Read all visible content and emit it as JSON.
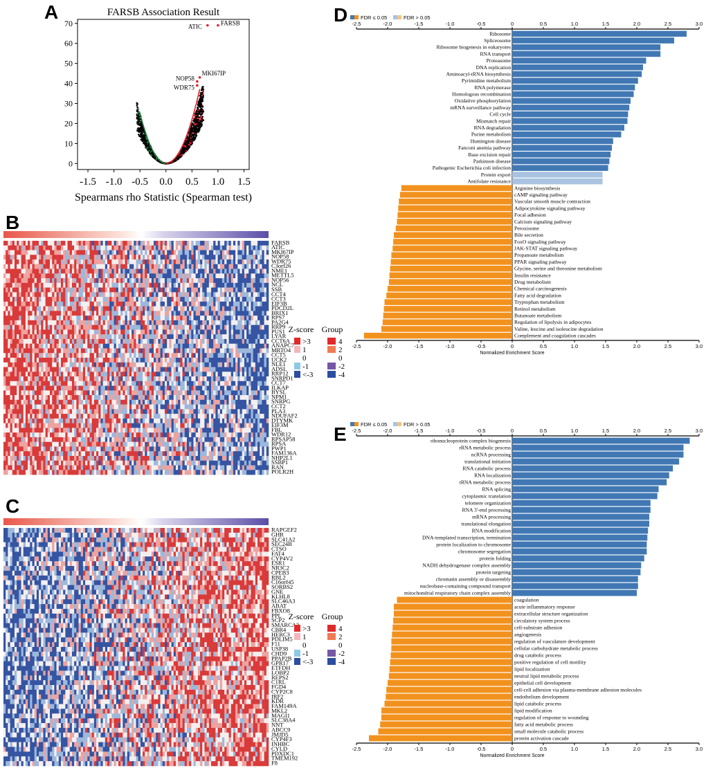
{
  "panels": {
    "A": "A",
    "B": "B",
    "C": "C",
    "D": "D",
    "E": "E"
  },
  "colors": {
    "up": "#4178b4",
    "down": "#f2921e",
    "up_ns": "#a9c3e0",
    "down_ns": "#f6c37d",
    "heat_red": "#e0292b",
    "heat_blue": "#2b4ea0",
    "volcano_pos": "#e0202a",
    "volcano_neg": "#1d7a3a"
  },
  "chart_data": [
    {
      "id": "A",
      "type": "scatter",
      "title": "FARSB Association Result",
      "xlabel": "Spearmans rho Statistic (Spearman test)",
      "ylabel": "",
      "xlim": [
        -1.7,
        1.6
      ],
      "ylim": [
        -3,
        72
      ],
      "xticks": [
        "-1.5",
        "-1.0",
        "-0.5",
        "0.0",
        "0.5",
        "1.0",
        "1.5"
      ],
      "yticks": [
        "0",
        "10",
        "20",
        "30",
        "40",
        "50",
        "60",
        "70"
      ],
      "labeled_points": [
        {
          "label": "FARSB",
          "x": 1.0,
          "y": 69
        },
        {
          "label": "ATIC",
          "x": 0.8,
          "y": 69
        },
        {
          "label": "MKI67IP",
          "x": 0.65,
          "y": 43
        },
        {
          "label": "NOP58",
          "x": 0.6,
          "y": 41
        },
        {
          "label": "WDR75",
          "x": 0.6,
          "y": 39
        }
      ]
    },
    {
      "id": "B",
      "type": "heatmap",
      "genes": [
        "FARSB",
        "ATIC",
        "MKI67IP",
        "NOP58",
        "WDR75",
        "C3orf26",
        "NME1",
        "METTL5",
        "NOP56",
        "NCL",
        "SSB",
        "CCT4",
        "CCT3",
        "EIF3B",
        "PDCD2L",
        "BRIX1",
        "RPS7",
        "PA2G4",
        "RRP9",
        "PUS1",
        "LYAR",
        "CCT6A",
        "ANAPC7",
        "MRTO4",
        "CCT5",
        "UCK2",
        "NLE1",
        "ADSL",
        "RRP12",
        "SNRPD1",
        "CCT7",
        "ILKAP",
        "BYSL",
        "NPM1",
        "SNRPG",
        "CCT2",
        "PLA3",
        "NDUFAF2",
        "DTYMK",
        "EIF3M",
        "FBL",
        "WDR12",
        "RPSAP58",
        "RPSA",
        "PWP1",
        "FAM136A",
        "NHP2L1",
        "SSBP1",
        "RAN",
        "POLR2H"
      ],
      "legend": {
        "zscore_title": "Z-score",
        "group_title": "Group",
        "zscore": [
          ">3",
          "1",
          "0",
          "-1",
          "<-3"
        ],
        "group": [
          "4",
          "2",
          "0",
          "-2",
          "-4"
        ]
      }
    },
    {
      "id": "C",
      "type": "heatmap",
      "genes": [
        "RAPGEF2",
        "GHR",
        "SLC41A2",
        "SEC24B",
        "CTSO",
        "FAT4",
        "CYP4V2",
        "ESR1",
        "NR3C2",
        "CPEB3",
        "RBL2",
        "C16orf45",
        "SORBS2",
        "GNE",
        "KLHL8",
        "SLC46A3",
        "ABAT",
        "FBXO8",
        "PPL",
        "SCP2",
        "SMARCA2",
        "CBR4",
        "HERC3",
        "PDLIM5",
        "F11",
        "USP38",
        "CHD9",
        "PPAP2B",
        "GPR17",
        "ETFDH",
        "LOBP2",
        "REPS2",
        "C1RL",
        "FGD4",
        "CYP2C8",
        "IRF2",
        "KDR",
        "FAM149A",
        "MKL2",
        "MAGI1",
        "SLC38A4",
        "NNT",
        "ABCC9",
        "JMJD5",
        "CYP4F3",
        "INHBC",
        "CYLD",
        "PDXDC1",
        "TMEM192",
        "F8"
      ],
      "legend": {
        "zscore_title": "Z-score",
        "group_title": "Group",
        "zscore": [
          ">3",
          "1",
          "0",
          "-1",
          "<-3"
        ],
        "group": [
          "4",
          "2",
          "0",
          "-2",
          "-4"
        ]
      }
    },
    {
      "id": "D",
      "type": "bar",
      "orientation": "horizontal",
      "xlabel": "Normalized Enrichment Score",
      "xlim": [
        -2.5,
        3.0
      ],
      "xticks": [
        "-2.5",
        "-2.0",
        "-1.5",
        "-1.0",
        "-0.5",
        "0",
        "0.5",
        "1.0",
        "1.5",
        "2.0",
        "2.5",
        "3.0"
      ],
      "legend": [
        "FDR ≤ 0.05",
        "FDR > 0.05"
      ],
      "categories": [
        "Ribosome",
        "Spliceosome",
        "Ribosome biogenesis in eukaryotes",
        "RNA transport",
        "Proteasome",
        "DNA replication",
        "Aminoacyl-tRNA biosynthesis",
        "Pyrimidine metabolism",
        "RNA polymerase",
        "Homologous recombination",
        "Oxidative phosphorylation",
        "mRNA surveillance pathway",
        "Cell cycle",
        "Mismatch repair",
        "RNA degradation",
        "Purine metabolism",
        "Huntington disease",
        "Fanconi anemia pathway",
        "Base excision repair",
        "Parkinson disease",
        "Pathogenic Escherichia coli infection",
        "Protein export",
        "Antifolate resistance",
        "Arginine biosynthesis",
        "cAMP signaling pathway",
        "Vascular smooth muscle contraction",
        "Adipocytokine signaling pathway",
        "Focal adhesion",
        "Calcium signaling pathway",
        "Peroxisome",
        "Bile secretion",
        "FoxO signaling pathway",
        "JAK-STAT signaling pathway",
        "Propanoate metabolism",
        "PPAR signaling pathway",
        "Glycine, serine and threonine metabolism",
        "Insulin resistance",
        "Drug metabolism",
        "Chemical carcinogenesis",
        "Fatty acid degradation",
        "Tryptophan metabolism",
        "Retinol metabolism",
        "Butanoate metabolism",
        "Regulation of lipolysis in adipocytes",
        "Valine, leucine and isoleucine degradation",
        "Complement and coagulation cascades"
      ],
      "values": [
        2.8,
        2.6,
        2.38,
        2.38,
        2.15,
        2.1,
        2.08,
        2.02,
        1.97,
        1.95,
        1.9,
        1.88,
        1.86,
        1.85,
        1.8,
        1.75,
        1.62,
        1.6,
        1.58,
        1.56,
        1.54,
        1.45,
        1.45,
        -1.78,
        -1.8,
        -1.82,
        -1.83,
        -1.84,
        -1.85,
        -1.87,
        -1.9,
        -1.91,
        -1.92,
        -1.94,
        -1.95,
        -1.96,
        -1.97,
        -1.98,
        -2.0,
        -2.02,
        -2.05,
        -2.06,
        -2.07,
        -2.08,
        -2.1,
        -2.38
      ],
      "significant": [
        true,
        true,
        true,
        true,
        true,
        true,
        true,
        true,
        true,
        true,
        true,
        true,
        true,
        true,
        true,
        true,
        true,
        true,
        true,
        true,
        true,
        false,
        false,
        true,
        true,
        true,
        true,
        true,
        true,
        true,
        true,
        true,
        true,
        true,
        true,
        true,
        true,
        true,
        true,
        true,
        true,
        true,
        true,
        true,
        true,
        true
      ]
    },
    {
      "id": "E",
      "type": "bar",
      "orientation": "horizontal",
      "xlabel": "Normalized Enrichment Score",
      "xlim": [
        -2.5,
        3.0
      ],
      "xticks": [
        "-2.5",
        "-2.0",
        "-1.5",
        "-1.0",
        "-0.5",
        "0",
        "0.5",
        "1.0",
        "1.5",
        "2.0",
        "2.5",
        "3.0"
      ],
      "legend": [
        "FDR ≤ 0.05",
        "FDR > 0.05"
      ],
      "categories": [
        "ribonucleoprotein complex biogenesis",
        "rRNA metabolic process",
        "ncRNA processing",
        "translational initiation",
        "RNA catabolic process",
        "RNA localization",
        "tRNA metabolic process",
        "RNA splicing",
        "cytoplasmic translation",
        "telomere organization",
        "RNA 3'-end processing",
        "mRNA processing",
        "translational elongation",
        "RNA modification",
        "DNA-templated transcription, termination",
        "protein localization to chromosome",
        "chromosome segregation",
        "protein folding",
        "NADH dehydrogenase complex assembly",
        "protein targeting",
        "chromatin assembly or disassembly",
        "nucleobase-containing compound transport",
        "mitochondrial respiratory chain complex assembly",
        "coagulation",
        "acute inflammatory response",
        "extracellular structure organization",
        "circulatory system process",
        "cell-substrate adhesion",
        "angiogenesis",
        "regulation of vasculature development",
        "cellular carbohydrate metabolic process",
        "drug catabolic process",
        "positive regulation of cell motility",
        "lipid localization",
        "neutral lipid metabolic process",
        "epithelial cell development",
        "cell-cell adhesion via plasma-membrane adhesion molecules",
        "endothelium development",
        "lipid catabolic process",
        "lipid modification",
        "regulation of response to wounding",
        "fatty acid metabolic process",
        "small molecule catabolic process",
        "protein activation cascade"
      ],
      "values": [
        2.85,
        2.75,
        2.75,
        2.68,
        2.58,
        2.52,
        2.48,
        2.35,
        2.33,
        2.22,
        2.22,
        2.2,
        2.2,
        2.18,
        2.17,
        2.16,
        2.16,
        2.12,
        2.07,
        2.06,
        2.02,
        2.02,
        2.0,
        -1.85,
        -1.9,
        -1.9,
        -1.91,
        -1.92,
        -1.93,
        -1.94,
        -1.94,
        -1.95,
        -1.96,
        -1.97,
        -1.98,
        -2.0,
        -2.02,
        -2.03,
        -2.05,
        -2.1,
        -2.1,
        -2.12,
        -2.15,
        -2.3
      ],
      "significant": [
        true,
        true,
        true,
        true,
        true,
        true,
        true,
        true,
        true,
        true,
        true,
        true,
        true,
        true,
        true,
        true,
        true,
        true,
        true,
        true,
        true,
        true,
        true,
        true,
        true,
        true,
        true,
        true,
        true,
        true,
        true,
        true,
        true,
        true,
        true,
        true,
        true,
        true,
        true,
        true,
        true,
        true,
        true,
        true
      ]
    }
  ]
}
